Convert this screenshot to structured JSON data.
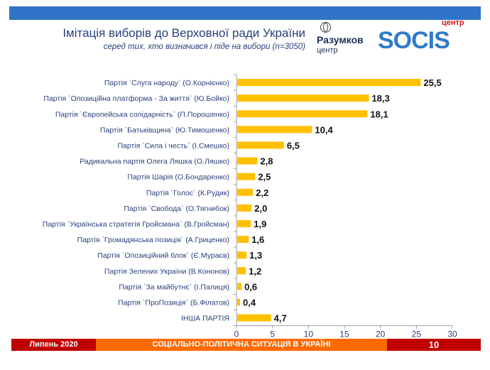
{
  "header": {
    "title": "Імітація виборів до Верховної ради України",
    "subtitle": "серед тих, хто визначився і піде на вибори (n=3050)"
  },
  "logos": {
    "razumkov": "Разумков",
    "razumkov_sub": "центр",
    "socis": "SOCIS",
    "socis_sub": "центр"
  },
  "footer": {
    "date": "Липень 2020",
    "section": "СОЦІАЛЬНО-ПОЛІТИЧНА СИТУАЦІЯ В УКРАЇНІ",
    "page": "10"
  },
  "colors": {
    "bar": "#ffc000",
    "label": "#2a3f7a",
    "topbar": "#2f74c8"
  },
  "chart_data": {
    "type": "bar",
    "orientation": "horizontal",
    "title": "Імітація виборів до Верховної ради України",
    "subtitle": "серед тих, хто визначився і піде на вибори (n=3050)",
    "xlabel": "",
    "ylabel": "",
    "xlim": [
      0,
      30
    ],
    "xticks": [
      0,
      5,
      10,
      15,
      20,
      25,
      30
    ],
    "grid": false,
    "legend": "none",
    "categories": [
      "Партія `Слуга народу` (О.Корнієнко)",
      "Партія `Опозиційна платформа - За життя` (Ю.Бойко)",
      "Партія `Європейська солідарність` (П.Порошенко)",
      "Партія `Батьківщина` (Ю.Тимошенко)",
      "Партія `Сила і честь` (І.Смешко)",
      "Радикальна партія Олега Ляшка (О.Ляшко)",
      "Партія Шарія (О.Бондаренко)",
      "Партія `Голос` (К.Рудик)",
      "Партія `Свобода` (О.Тягнибок)",
      "Партія `Українська стратегія Гройсмана` (В.Гройсман)",
      "Партія `Громадянська позиція` (А.Гриценко)",
      "Партія `Опозиційний блок` (Є.Мураєв)",
      "Партія Зелених України (В.Кононов)",
      "Партія `За майбутнє` (І.Палиця)",
      "Партія `ПроПозиція` (Б.Філатов)",
      "ІНША ПАРТІЯ"
    ],
    "values": [
      25.5,
      18.3,
      18.1,
      10.4,
      6.5,
      2.8,
      2.5,
      2.2,
      2.0,
      1.9,
      1.6,
      1.3,
      1.2,
      0.6,
      0.4,
      4.7
    ],
    "value_labels": [
      "25,5",
      "18,3",
      "18,1",
      "10,4",
      "6,5",
      "2,8",
      "2,5",
      "2,2",
      "2,0",
      "1,9",
      "1,6",
      "1,3",
      "1,2",
      "0,6",
      "0,4",
      "4,7"
    ]
  }
}
